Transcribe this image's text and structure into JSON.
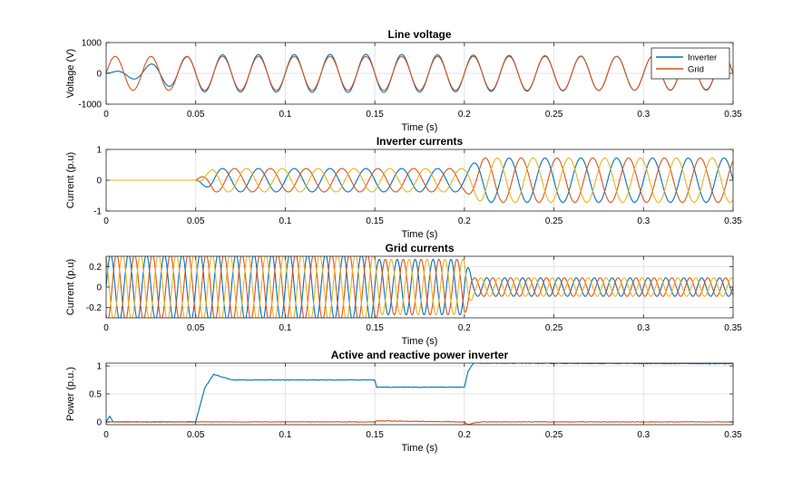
{
  "chart_data": [
    {
      "type": "line",
      "title": "Line voltage",
      "xlabel": "Time (s)",
      "ylabel": "Voltage (V)",
      "xlim": [
        0,
        0.35
      ],
      "ylim": [
        -1000,
        1000
      ],
      "xticks": [
        0,
        0.05,
        0.1,
        0.15,
        0.2,
        0.25,
        0.3,
        0.35
      ],
      "xtick_labels": [
        "0",
        "0.05",
        "0.1",
        "0.15",
        "0.2",
        "0.25",
        "0.3",
        "0.35"
      ],
      "yticks": [
        -1000,
        0,
        1000
      ],
      "ytick_labels": [
        "-1000",
        "0",
        "1000"
      ],
      "grid": true,
      "legend": "top-right",
      "frequency_hz": 50,
      "series": [
        {
          "name": "Inverter",
          "color": "#0072BD",
          "desc": "~0 V until 0.05 s, ~650 V amplitude 0.05-0.15 s, then tracks grid",
          "amplitude": [
            [
              0,
              0
            ],
            [
              0.05,
              600
            ],
            [
              0.15,
              620
            ],
            [
              0.35,
              520
            ]
          ]
        },
        {
          "name": "Grid",
          "color": "#D95319",
          "desc": "50 Hz sine, amplitude ~550 V",
          "amplitude": [
            [
              0,
              550
            ],
            [
              0.35,
              550
            ]
          ]
        }
      ]
    },
    {
      "type": "line",
      "title": "Inverter currents",
      "xlabel": "Time (s)",
      "ylabel": "Current (p.u)",
      "xlim": [
        0,
        0.35
      ],
      "ylim": [
        -1,
        1
      ],
      "xticks": [
        0,
        0.05,
        0.1,
        0.15,
        0.2,
        0.25,
        0.3,
        0.35
      ],
      "xtick_labels": [
        "0",
        "0.05",
        "0.1",
        "0.15",
        "0.2",
        "0.25",
        "0.3",
        "0.35"
      ],
      "yticks": [
        -1,
        0,
        1
      ],
      "ytick_labels": [
        "-1",
        "0",
        "1"
      ],
      "grid": true,
      "frequency_hz": 50,
      "series": [
        {
          "color": "#0072BD",
          "phase_deg": 0,
          "amplitude": [
            [
              0,
              0
            ],
            [
              0.05,
              0
            ],
            [
              0.06,
              0.38
            ],
            [
              0.15,
              0.38
            ],
            [
              0.2,
              0.38
            ],
            [
              0.21,
              0.72
            ],
            [
              0.35,
              0.72
            ]
          ]
        },
        {
          "color": "#D95319",
          "phase_deg": -120,
          "amplitude": [
            [
              0,
              0
            ],
            [
              0.05,
              0
            ],
            [
              0.06,
              0.38
            ],
            [
              0.15,
              0.38
            ],
            [
              0.2,
              0.38
            ],
            [
              0.21,
              0.72
            ],
            [
              0.35,
              0.72
            ]
          ]
        },
        {
          "color": "#EDB120",
          "phase_deg": 120,
          "amplitude": [
            [
              0,
              0
            ],
            [
              0.05,
              0
            ],
            [
              0.06,
              0.38
            ],
            [
              0.15,
              0.38
            ],
            [
              0.2,
              0.38
            ],
            [
              0.21,
              0.72
            ],
            [
              0.35,
              0.72
            ]
          ]
        }
      ]
    },
    {
      "type": "line",
      "title": "Grid currents",
      "xlabel": "Time (s)",
      "ylabel": "Current (p.u)",
      "xlim": [
        0,
        0.35
      ],
      "ylim": [
        -0.3,
        0.3
      ],
      "xticks": [
        0,
        0.05,
        0.1,
        0.15,
        0.2,
        0.25,
        0.3,
        0.35
      ],
      "xtick_labels": [
        "0",
        "0.05",
        "0.1",
        "0.15",
        "0.2",
        "0.25",
        "0.3",
        "0.35"
      ],
      "yticks": [
        -0.2,
        0,
        0.2
      ],
      "ytick_labels": [
        "-0.2",
        "0",
        "0.2"
      ],
      "grid": true,
      "frequency_hz": 100,
      "series": [
        {
          "color": "#0072BD",
          "phase_deg": 0,
          "amplitude": [
            [
              0,
              0.32
            ],
            [
              0.15,
              0.32
            ],
            [
              0.152,
              0.27
            ],
            [
              0.2,
              0.27
            ],
            [
              0.205,
              0.09
            ],
            [
              0.35,
              0.09
            ]
          ]
        },
        {
          "color": "#D95319",
          "phase_deg": -120,
          "amplitude": [
            [
              0,
              0.32
            ],
            [
              0.15,
              0.32
            ],
            [
              0.152,
              0.27
            ],
            [
              0.2,
              0.27
            ],
            [
              0.205,
              0.09
            ],
            [
              0.35,
              0.09
            ]
          ]
        },
        {
          "color": "#EDB120",
          "phase_deg": 120,
          "amplitude": [
            [
              0,
              0.32
            ],
            [
              0.15,
              0.32
            ],
            [
              0.152,
              0.27
            ],
            [
              0.2,
              0.27
            ],
            [
              0.205,
              0.09
            ],
            [
              0.35,
              0.09
            ]
          ]
        }
      ]
    },
    {
      "type": "line",
      "title": "Active and reactive power inverter",
      "xlabel": "Time (s)",
      "ylabel": "Power (p.u.)",
      "xlim": [
        0,
        0.35
      ],
      "ylim": [
        -0.05,
        1.05
      ],
      "xticks": [
        0,
        0.05,
        0.1,
        0.15,
        0.2,
        0.25,
        0.3,
        0.35
      ],
      "xtick_labels": [
        "0",
        "0.05",
        "0.1",
        "0.15",
        "0.2",
        "0.25",
        "0.3",
        "0.35"
      ],
      "yticks": [
        0,
        0.5,
        1
      ],
      "ytick_labels": [
        "0",
        "0.5",
        "1"
      ],
      "grid": true,
      "series": [
        {
          "color": "#0072BD",
          "desc": "active power",
          "x": [
            0,
            0.002,
            0.004,
            0.05,
            0.055,
            0.06,
            0.065,
            0.07,
            0.1,
            0.15,
            0.151,
            0.2,
            0.202,
            0.205,
            0.35
          ],
          "y": [
            0.0,
            0.1,
            0.0,
            0.0,
            0.6,
            0.85,
            0.8,
            0.75,
            0.75,
            0.75,
            0.62,
            0.62,
            0.9,
            1.05,
            1.04
          ]
        },
        {
          "color": "#D95319",
          "desc": "reactive power",
          "x": [
            0,
            0.15,
            0.151,
            0.2,
            0.202,
            0.205,
            0.21,
            0.35
          ],
          "y": [
            0.0,
            0.0,
            0.02,
            0.0,
            -0.05,
            -0.02,
            0.0,
            0.0
          ]
        }
      ]
    }
  ]
}
